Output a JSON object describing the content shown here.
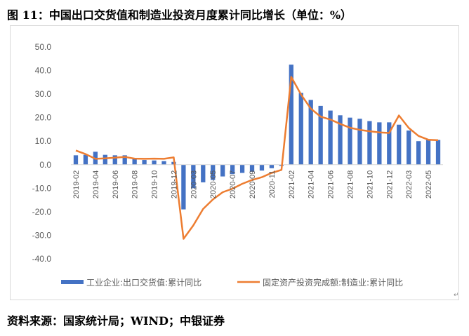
{
  "title": "图 11：中国出口交货值和制造业投资月度累计同比增长（单位：%）",
  "source": "资料来源：国家统计局；WIND；中银证券",
  "colors": {
    "bar": "#4472C4",
    "line": "#ED7D31",
    "axis": "#d9d9d9"
  },
  "chart_data": {
    "type": "bar+line",
    "categories": [
      "2019-02",
      "2019-03",
      "2019-04",
      "2019-05",
      "2019-06",
      "2019-07",
      "2019-08",
      "2019-09",
      "2019-10",
      "2019-11",
      "2019-12",
      "2020-02",
      "2020-03",
      "2020-04",
      "2020-05",
      "2020-06",
      "2020-07",
      "2020-08",
      "2020-09",
      "2020-10",
      "2020-11",
      "2020-12",
      "2021-02",
      "2021-03",
      "2021-04",
      "2021-05",
      "2021-06",
      "2021-07",
      "2021-08",
      "2021-09",
      "2021-10",
      "2021-11",
      "2021-12",
      "2022-02",
      "2022-03",
      "2022-04",
      "2022-05",
      "2022-06"
    ],
    "x_tick_labels": [
      "2019-02",
      "2019-04",
      "2019-06",
      "2019-08",
      "2019-10",
      "2019-12",
      "2020-03",
      "2020-05",
      "2020-07",
      "2020-09",
      "2020-11",
      "2021-02",
      "2021-04",
      "2021-06",
      "2021-08",
      "2021-10",
      "2021-12",
      "2022-03",
      "2022-05"
    ],
    "series": [
      {
        "name": "工业企业:出口交货值:累计同比",
        "kind": "bar",
        "values": [
          4.0,
          4.2,
          5.5,
          4.2,
          4.0,
          4.0,
          2.5,
          2.0,
          1.8,
          1.5,
          1.2,
          -19.0,
          -10.0,
          -7.5,
          -6.5,
          -5.0,
          -4.0,
          -3.5,
          -3.0,
          -2.5,
          -1.5,
          -0.5,
          42.5,
          30.5,
          27.5,
          25.0,
          23.0,
          21.0,
          20.0,
          19.5,
          18.5,
          18.0,
          18.0,
          17.0,
          14.5,
          10.0,
          10.5,
          10.5
        ]
      },
      {
        "name": "固定资产投资完成额:制造业:累计同比",
        "kind": "line",
        "values": [
          6.0,
          4.5,
          2.5,
          2.7,
          3.0,
          3.3,
          2.6,
          2.5,
          2.6,
          2.5,
          3.1,
          -31.5,
          -25.8,
          -18.8,
          -14.8,
          -11.7,
          -10.2,
          -8.1,
          -6.5,
          -5.3,
          -3.5,
          -2.2,
          37.3,
          29.8,
          23.8,
          20.4,
          19.2,
          17.3,
          15.7,
          14.8,
          14.2,
          13.7,
          13.5,
          20.9,
          15.6,
          12.2,
          10.6,
          10.4
        ]
      }
    ],
    "y_ticks": [
      "50.0",
      "40.0",
      "30.0",
      "20.0",
      "10.0",
      "0.0",
      "-10.0",
      "-20.0",
      "-30.0",
      "-40.0"
    ],
    "ylim": [
      -40,
      50
    ],
    "legend_position": "bottom",
    "grid": false
  }
}
